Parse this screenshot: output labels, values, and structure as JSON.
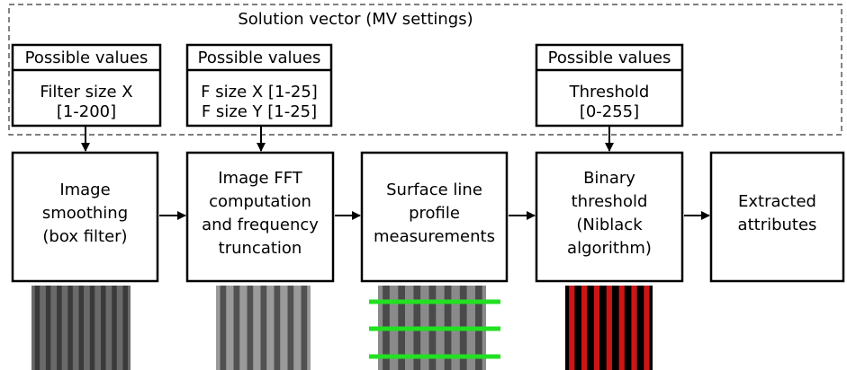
{
  "title": "Solution vector (MV settings)",
  "value_boxes": [
    {
      "header": "Possible values",
      "lines": [
        "Filter size X",
        "[1-200]"
      ]
    },
    {
      "header": "Possible values",
      "lines": [
        "F size X [1-25]",
        "F size Y [1-25]"
      ]
    },
    {
      "header": "Possible values",
      "lines": [
        "Threshold",
        "[0-255]"
      ]
    }
  ],
  "steps": [
    {
      "lines": [
        "Image",
        "smoothing",
        "(box filter)"
      ]
    },
    {
      "lines": [
        "Image FFT",
        "computation",
        "and frequency",
        "truncation"
      ]
    },
    {
      "lines": [
        "Surface line",
        "profile",
        "measurements"
      ]
    },
    {
      "lines": [
        "Binary",
        "threshold",
        "(Niblack",
        "algorithm)"
      ]
    },
    {
      "lines": [
        "Extracted",
        "attributes"
      ]
    }
  ]
}
